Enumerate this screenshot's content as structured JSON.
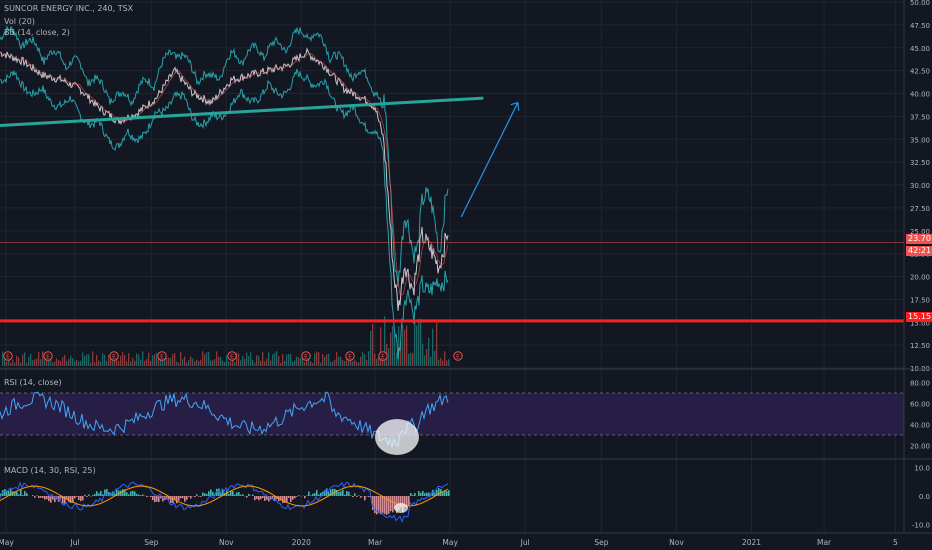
{
  "colors": {
    "background": "#131722",
    "grid": "#1f2430",
    "axis_text": "#b2b5be",
    "price_line": "#c8c8d0",
    "bb_line": "#2eb8c0",
    "trendline": "#26a69a",
    "support_line": "#ff1e1e",
    "arrow": "#2196f3",
    "rsi_line": "#42a5f5",
    "rsi_band": "#2a1f4a",
    "macd_line": "#2962ff",
    "signal_line": "#ff9800",
    "hist_up": "#4dd0c4",
    "hist_down": "#f7a1a8",
    "vol_up": "#26a69a",
    "vol_down": "#ef5350",
    "event_marker": "#ef5350"
  },
  "header": {
    "title": "SUNCOR ENERGY INC., 240, TSX",
    "vol": "Vol (20)",
    "bb": "BB (14, close, 2)"
  },
  "price_labels": {
    "current": "23.70",
    "countdown": "42:21",
    "support": "15.15"
  },
  "event_letter": "E",
  "rsi": {
    "title": "RSI (14, close)",
    "ticks": [
      "80.00",
      "60.00",
      "40.00",
      "20.00"
    ]
  },
  "macd": {
    "title": "MACD (14, 30, RSI, 25)",
    "ticks": [
      "10.0",
      "0.0",
      "-10.0"
    ]
  },
  "chart_data": {
    "type": "line",
    "ylim": [
      10,
      50
    ],
    "y_ticks": [
      "50.00",
      "47.50",
      "45.00",
      "42.50",
      "40.00",
      "37.50",
      "35.00",
      "32.50",
      "30.00",
      "27.50",
      "25.00",
      "22.50",
      "20.00",
      "17.50",
      "15.00",
      "12.50",
      "10.00"
    ],
    "x_ticks": [
      "May",
      "Jul",
      "Sep",
      "Nov",
      "2020",
      "Mar",
      "May",
      "Jul",
      "Sep",
      "Nov",
      "2021",
      "Mar",
      "5"
    ],
    "series": [
      {
        "x": [
          "2019-05-01",
          "2019-05-20",
          "2019-06-05",
          "2019-06-20",
          "2019-07-05",
          "2019-07-20",
          "2019-08-05",
          "2019-08-20",
          "2019-09-05",
          "2019-09-20",
          "2019-10-05",
          "2019-10-20",
          "2019-11-05",
          "2019-11-20",
          "2019-12-05",
          "2019-12-20",
          "2020-01-05",
          "2020-01-20",
          "2020-02-05",
          "2020-02-20",
          "2020-03-01",
          "2020-03-08",
          "2020-03-12",
          "2020-03-16",
          "2020-03-20",
          "2020-03-25",
          "2020-04-01",
          "2020-04-08",
          "2020-04-15",
          "2020-04-22",
          "2020-04-30"
        ],
        "values": [
          44.5,
          43.5,
          42.0,
          41.5,
          40.5,
          38.5,
          37.0,
          37.8,
          39.5,
          42.5,
          40.0,
          39.0,
          41.5,
          42.0,
          42.5,
          43.0,
          44.5,
          43.0,
          40.5,
          39.5,
          38.5,
          35.0,
          28.0,
          20.5,
          16.5,
          21.5,
          18.5,
          24.5,
          23.0,
          21.0,
          25.5
        ]
      }
    ],
    "trendline": {
      "from": [
        "2019-05-01",
        36.5
      ],
      "to": [
        "2020-05-28",
        39.5
      ]
    },
    "support_level": 15.15,
    "current_price": 23.7,
    "projection_arrow": {
      "from": [
        "2020-05-10",
        26.5
      ],
      "to": [
        "2020-06-25",
        39.0
      ]
    }
  }
}
